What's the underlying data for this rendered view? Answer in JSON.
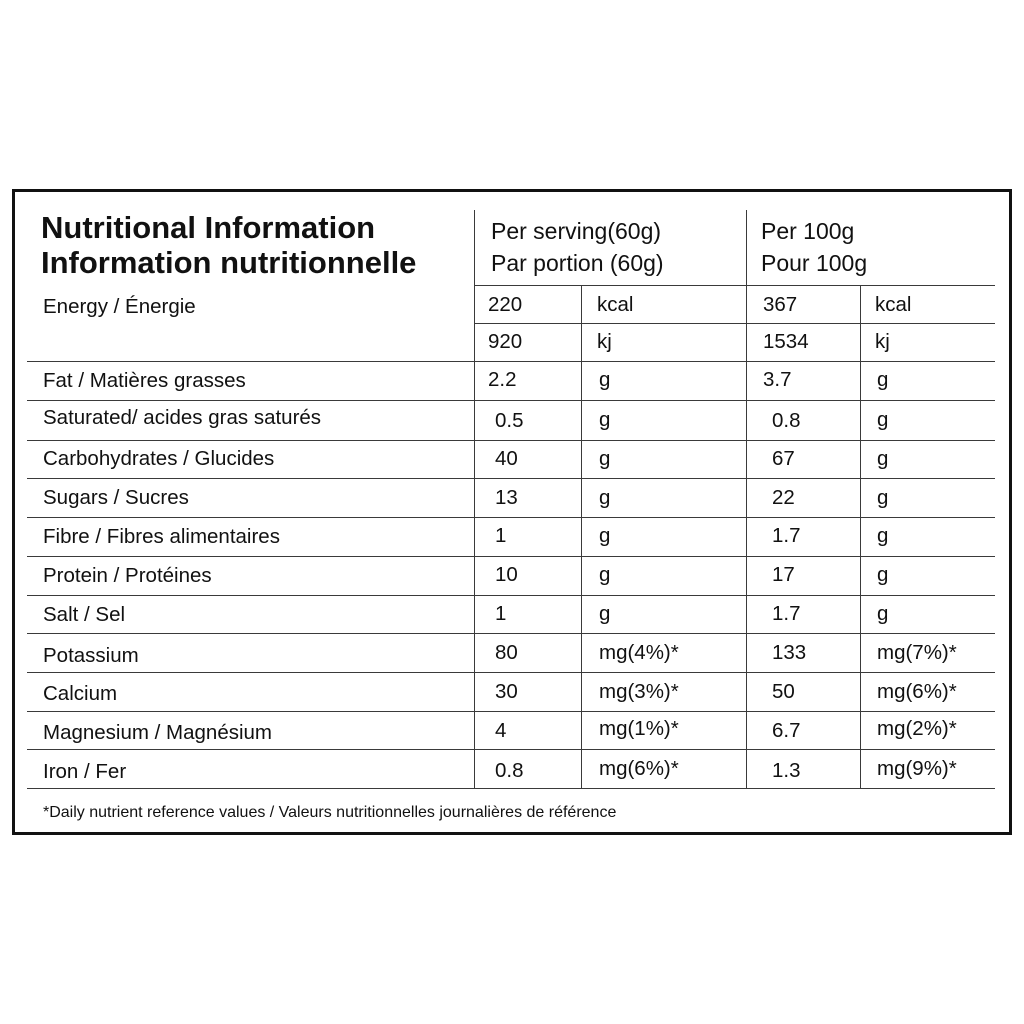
{
  "header": {
    "title_en": "Nutritional Information",
    "title_fr": "Information nutritionnelle",
    "serving_en": "Per serving(60g)",
    "serving_fr": "Par portion (60g)",
    "hundred_en": "Per 100g",
    "hundred_fr": "Pour 100g"
  },
  "energy": {
    "label": "Energy / Énergie",
    "rows": [
      {
        "serving_value": "220",
        "serving_unit": "kcal",
        "per100_value": "367",
        "per100_unit": "kcal"
      },
      {
        "serving_value": "920",
        "serving_unit": "kj",
        "per100_value": "1534",
        "per100_unit": "kj"
      }
    ]
  },
  "rows": [
    {
      "label": "Fat / Matières grasses",
      "serving_value": "2.2",
      "serving_unit": "g",
      "per100_value": "3.7",
      "per100_unit": "g"
    },
    {
      "label": "Saturated/ acides gras saturés",
      "serving_value": "0.5",
      "serving_unit": "g",
      "per100_value": "0.8",
      "per100_unit": "g"
    },
    {
      "label": "Carbohydrates / Glucides",
      "serving_value": "40",
      "serving_unit": "g",
      "per100_value": "67",
      "per100_unit": "g"
    },
    {
      "label": "Sugars / Sucres",
      "serving_value": "13",
      "serving_unit": "g",
      "per100_value": "22",
      "per100_unit": "g"
    },
    {
      "label": "Fibre / Fibres alimentaires",
      "serving_value": "1",
      "serving_unit": "g",
      "per100_value": "1.7",
      "per100_unit": "g"
    },
    {
      "label": "Protein / Protéines",
      "serving_value": "10",
      "serving_unit": "g",
      "per100_value": "17",
      "per100_unit": "g"
    },
    {
      "label": "Salt / Sel",
      "serving_value": "1",
      "serving_unit": "g",
      "per100_value": "1.7",
      "per100_unit": "g"
    },
    {
      "label": "Potassium",
      "serving_value": "80",
      "serving_unit": "mg(4%)*",
      "per100_value": "133",
      "per100_unit": "mg(7%)*"
    },
    {
      "label": "Calcium",
      "serving_value": "30",
      "serving_unit": "mg(3%)*",
      "per100_value": "50",
      "per100_unit": "mg(6%)*"
    },
    {
      "label": "Magnesium / Magnésium",
      "serving_value": "4",
      "serving_unit": "mg(1%)*",
      "per100_value": "6.7",
      "per100_unit": "mg(2%)*"
    },
    {
      "label": "Iron / Fer",
      "serving_value": "0.8",
      "serving_unit": "mg(6%)*",
      "per100_value": "1.3",
      "per100_unit": "mg(9%)*"
    }
  ],
  "footnote": "*Daily nutrient reference values / Valeurs nutritionnelles journalières de référence"
}
